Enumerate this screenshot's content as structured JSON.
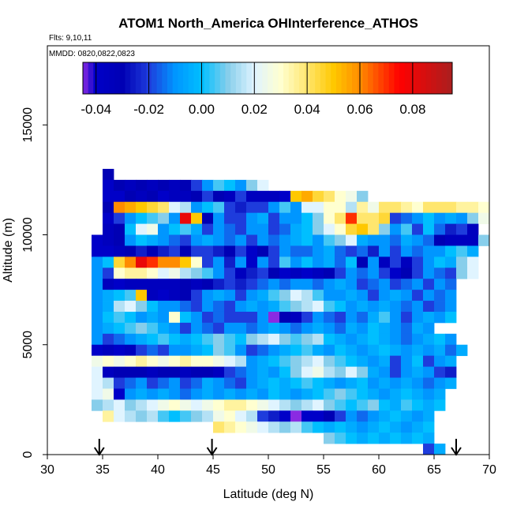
{
  "chart_data": {
    "type": "heatmap",
    "title": "ATOM1 North_America OHInterference_ATHOS",
    "flights_label": "Flts: 9,10,11",
    "dates_label": "MMDD: 0820,0822,0823",
    "xlabel": "Latitude (deg N)",
    "ylabel": "Altitude (m)",
    "xlim": [
      30,
      70
    ],
    "ylim": [
      0,
      18600
    ],
    "xticks": [
      "30",
      "35",
      "40",
      "45",
      "50",
      "55",
      "60",
      "65",
      "70"
    ],
    "xtick_values": [
      30,
      35,
      40,
      45,
      50,
      55,
      60,
      65,
      70
    ],
    "yticks": [
      "0",
      "5000",
      "10000",
      "15000"
    ],
    "ytick_values": [
      0,
      5000,
      10000,
      15000
    ],
    "colorbar": {
      "range": [
        -0.045,
        0.095
      ],
      "ticks": [
        "-0.04",
        "-0.02",
        "0.00",
        "0.02",
        "0.04",
        "0.06",
        "0.08"
      ],
      "tick_values": [
        -0.04,
        -0.02,
        0.0,
        0.02,
        0.04,
        0.06,
        0.08
      ],
      "stops": [
        [
          -0.045,
          "#8a2be2"
        ],
        [
          -0.04,
          "#0000c8"
        ],
        [
          -0.03,
          "#0000b4"
        ],
        [
          -0.02,
          "#1e3cdc"
        ],
        [
          -0.01,
          "#0096ff"
        ],
        [
          0.0,
          "#00bfff"
        ],
        [
          0.01,
          "#87ceeb"
        ],
        [
          0.02,
          "#e0f4ff"
        ],
        [
          0.03,
          "#ffffd0"
        ],
        [
          0.04,
          "#ffe66e"
        ],
        [
          0.05,
          "#ffc800"
        ],
        [
          0.06,
          "#ff8c00"
        ],
        [
          0.075,
          "#ff0000"
        ],
        [
          0.095,
          "#aa1e1e"
        ]
      ]
    },
    "arrows_latitude": [
      34.7,
      44.9,
      67.0
    ],
    "cell_width_deg": 1,
    "cell_height_m": 500,
    "rows": [
      {
        "alt": 12750,
        "lat0": 35,
        "values": [
          -0.03
        ]
      },
      {
        "alt": 12250,
        "lat0": 35,
        "values": [
          -0.04,
          -0.03,
          -0.035,
          -0.03,
          -0.035,
          -0.03,
          -0.035,
          -0.03,
          -0.02,
          -0.01,
          0.005,
          0.0,
          -0.01,
          0.01,
          0.02
        ]
      },
      {
        "alt": 11750,
        "lat0": 35,
        "values": [
          -0.04,
          -0.04,
          -0.03,
          -0.035,
          -0.03,
          -0.04,
          -0.035,
          -0.035,
          -0.03,
          -0.02,
          -0.03,
          -0.035,
          -0.02,
          -0.035,
          -0.035,
          -0.035,
          -0.04,
          0.05,
          0.055,
          0.045,
          0.04,
          0.03,
          0.025,
          0.01
        ]
      },
      {
        "alt": 11250,
        "lat0": 35,
        "values": [
          -0.03,
          0.06,
          0.055,
          0.05,
          0.045,
          0.04,
          0.02,
          0.015,
          -0.01,
          0.0,
          0.005,
          -0.02,
          -0.025,
          -0.02,
          -0.02,
          -0.01,
          0.005,
          -0.01,
          0.02,
          0.02,
          0.03,
          0.03,
          0.015,
          0.035,
          0.025,
          0.04,
          0.04,
          0.035,
          0.03,
          0.04,
          0.04,
          0.04,
          0.035,
          0.035,
          0.03
        ]
      },
      {
        "alt": 10750,
        "lat0": 35,
        "values": [
          -0.04,
          -0.02,
          -0.01,
          0.0,
          0.005,
          0.01,
          -0.01,
          0.08,
          0.05,
          -0.03,
          -0.01,
          -0.02,
          -0.02,
          -0.01,
          -0.005,
          -0.02,
          -0.01,
          -0.01,
          0.0,
          0.01,
          0.03,
          0.04,
          0.07,
          0.04,
          0.04,
          0.045,
          -0.02,
          -0.015,
          -0.01,
          0.0,
          -0.01,
          -0.005,
          -0.01,
          0.01,
          0.025
        ]
      },
      {
        "alt": 10250,
        "lat0": 35,
        "values": [
          -0.035,
          -0.03,
          0.0,
          0.02,
          0.025,
          -0.01,
          0.0,
          0.005,
          -0.005,
          -0.02,
          -0.01,
          -0.015,
          -0.02,
          -0.01,
          -0.01,
          -0.02,
          -0.015,
          -0.005,
          0.0,
          0.01,
          0.02,
          0.03,
          0.045,
          0.05,
          0.04,
          0.01,
          -0.01,
          0.005,
          -0.02,
          0.0,
          -0.015,
          -0.025,
          -0.02,
          -0.035
        ]
      },
      {
        "alt": 9750,
        "lat0": 34,
        "values": [
          -0.04,
          -0.035,
          -0.03,
          -0.01,
          0.0,
          -0.005,
          -0.01,
          -0.015,
          -0.02,
          -0.01,
          -0.005,
          -0.01,
          -0.015,
          -0.01,
          -0.02,
          -0.01,
          -0.015,
          -0.01,
          -0.005,
          0.0,
          -0.01,
          0.005,
          0.01,
          0.02,
          -0.005,
          -0.01,
          -0.01,
          -0.015,
          -0.005,
          -0.01,
          -0.015,
          -0.03,
          -0.035,
          -0.035,
          -0.035,
          0.01
        ]
      },
      {
        "alt": 9250,
        "lat0": 34,
        "values": [
          -0.04,
          -0.04,
          -0.035,
          -0.03,
          -0.025,
          -0.03,
          -0.025,
          -0.02,
          -0.03,
          -0.02,
          -0.02,
          -0.025,
          -0.03,
          -0.02,
          -0.04,
          -0.03,
          -0.02,
          -0.01,
          -0.015,
          -0.015,
          -0.01,
          -0.005,
          -0.015,
          -0.02,
          -0.015,
          -0.025,
          -0.01,
          -0.02,
          -0.01,
          -0.015,
          -0.01,
          -0.01,
          0.0,
          0.005,
          -0.005
        ]
      },
      {
        "alt": 8750,
        "lat0": 34,
        "values": [
          -0.01,
          0.0,
          0.045,
          0.06,
          0.08,
          0.07,
          0.06,
          0.06,
          0.05,
          0.03,
          -0.02,
          -0.01,
          -0.025,
          -0.01,
          -0.04,
          -0.01,
          -0.02,
          0.005,
          -0.01,
          0.0,
          -0.01,
          -0.005,
          -0.015,
          0.0,
          -0.03,
          -0.01,
          -0.035,
          -0.02,
          -0.035,
          -0.02,
          -0.01,
          0.0,
          -0.005,
          0.01,
          0.02
        ]
      },
      {
        "alt": 8250,
        "lat0": 34,
        "values": [
          -0.01,
          -0.02,
          0.03,
          0.035,
          0.035,
          0.03,
          0.02,
          0.025,
          0.015,
          0.01,
          0.005,
          -0.01,
          -0.02,
          -0.035,
          -0.025,
          -0.02,
          -0.03,
          -0.04,
          -0.035,
          -0.04,
          -0.035,
          -0.03,
          -0.02,
          -0.01,
          -0.015,
          -0.01,
          -0.02,
          -0.04,
          -0.03,
          -0.02,
          -0.01,
          -0.015,
          -0.02,
          0.01,
          0.02
        ]
      },
      {
        "alt": 7750,
        "lat0": 34,
        "values": [
          -0.01,
          -0.035,
          -0.04,
          -0.035,
          -0.035,
          -0.035,
          -0.035,
          -0.035,
          -0.03,
          -0.035,
          -0.03,
          -0.025,
          -0.02,
          -0.025,
          -0.02,
          -0.015,
          -0.01,
          -0.015,
          -0.01,
          -0.01,
          -0.015,
          -0.01,
          -0.005,
          -0.01,
          -0.02,
          -0.015,
          -0.01,
          -0.02,
          -0.015,
          -0.01,
          -0.02,
          -0.01,
          -0.015
        ]
      },
      {
        "alt": 7250,
        "lat0": 34,
        "values": [
          -0.01,
          -0.005,
          0.0,
          0.005,
          0.05,
          -0.035,
          -0.04,
          -0.035,
          -0.03,
          -0.02,
          -0.01,
          -0.005,
          -0.01,
          -0.02,
          -0.01,
          -0.005,
          0.005,
          0.01,
          0.02,
          0.015,
          0.005,
          -0.01,
          -0.01,
          -0.005,
          -0.01,
          -0.02,
          -0.01,
          -0.005,
          -0.01,
          -0.02,
          -0.01,
          -0.015,
          -0.01
        ]
      },
      {
        "alt": 6750,
        "lat0": 34,
        "values": [
          -0.01,
          -0.005,
          0.015,
          0.02,
          0.01,
          0.0,
          -0.01,
          -0.01,
          -0.015,
          -0.02,
          -0.01,
          -0.015,
          -0.02,
          -0.01,
          -0.005,
          -0.01,
          -0.005,
          0.005,
          0.01,
          0.015,
          0.02,
          0.005,
          0.0,
          -0.01,
          -0.005,
          -0.01,
          -0.005,
          -0.01,
          -0.015,
          -0.01,
          -0.02,
          -0.015,
          -0.01
        ]
      },
      {
        "alt": 6250,
        "lat0": 34,
        "values": [
          -0.01,
          0.0,
          0.005,
          0.0,
          -0.01,
          -0.005,
          -0.01,
          0.03,
          0.0,
          -0.01,
          -0.02,
          -0.015,
          -0.02,
          -0.02,
          -0.02,
          -0.01,
          -0.045,
          -0.03,
          -0.035,
          -0.02,
          -0.01,
          -0.015,
          -0.02,
          -0.01,
          -0.015,
          -0.005,
          0.005,
          -0.01,
          -0.02,
          -0.01,
          -0.005,
          -0.01,
          0.0
        ]
      },
      {
        "alt": 5750,
        "lat0": 34,
        "values": [
          -0.01,
          -0.005,
          0.0,
          0.005,
          0.01,
          0.005,
          -0.005,
          -0.01,
          -0.02,
          -0.01,
          -0.015,
          -0.02,
          -0.01,
          -0.01,
          -0.015,
          -0.01,
          -0.005,
          -0.01,
          -0.015,
          -0.01,
          -0.005,
          -0.01,
          -0.015,
          -0.005,
          -0.01,
          0.0,
          -0.005,
          -0.01,
          -0.015,
          -0.005,
          -0.01
        ]
      },
      {
        "alt": 5250,
        "lat0": 34,
        "values": [
          -0.01,
          -0.02,
          -0.015,
          -0.01,
          -0.005,
          0.0,
          0.005,
          0.0,
          -0.005,
          0.0,
          0.005,
          0.01,
          0.005,
          0.0,
          0.01,
          0.015,
          0.02,
          0.01,
          0.005,
          0.01,
          0.015,
          0.0,
          -0.005,
          -0.01,
          -0.005,
          0.0,
          -0.005,
          -0.01,
          -0.015,
          -0.01,
          -0.005,
          0.0,
          -0.01
        ]
      },
      {
        "alt": 4750,
        "lat0": 34,
        "values": [
          -0.04,
          -0.035,
          -0.04,
          -0.035,
          -0.02,
          -0.015,
          -0.02,
          -0.01,
          -0.01,
          -0.005,
          0.0,
          0.01,
          0.005,
          -0.01,
          -0.02,
          -0.015,
          -0.01,
          -0.005,
          0.0,
          0.005,
          -0.005,
          -0.01,
          0.0,
          -0.005,
          -0.01,
          -0.005,
          0.0,
          -0.005,
          -0.01,
          -0.005,
          -0.01,
          -0.005,
          -0.015,
          -0.005
        ]
      },
      {
        "alt": 4250,
        "lat0": 34,
        "values": [
          0.025,
          0.03,
          0.025,
          0.03,
          0.035,
          0.03,
          0.025,
          0.03,
          0.035,
          0.03,
          0.03,
          0.025,
          0.02,
          0.015,
          -0.01,
          -0.005,
          0.0,
          0.005,
          0.01,
          0.015,
          0.02,
          0.01,
          0.005,
          0.0,
          -0.005,
          -0.01,
          -0.005,
          -0.02,
          -0.01,
          0.0,
          -0.02,
          -0.01,
          -0.005
        ]
      },
      {
        "alt": 3750,
        "lat0": 34,
        "values": [
          0.02,
          -0.035,
          -0.03,
          -0.03,
          -0.03,
          -0.035,
          -0.03,
          -0.03,
          -0.035,
          -0.03,
          -0.03,
          -0.035,
          -0.02,
          -0.015,
          -0.01,
          -0.005,
          -0.01,
          0.0,
          0.01,
          0.02,
          0.025,
          0.015,
          0.01,
          0.02,
          0.01,
          -0.005,
          -0.01,
          -0.02,
          -0.01,
          -0.005,
          -0.01,
          -0.02,
          -0.025
        ]
      },
      {
        "alt": 3250,
        "lat0": 34,
        "values": [
          0.02,
          0.015,
          -0.02,
          -0.015,
          -0.01,
          -0.02,
          -0.015,
          -0.01,
          -0.02,
          -0.015,
          -0.005,
          -0.01,
          -0.015,
          -0.02,
          -0.01,
          -0.005,
          0.0,
          -0.005,
          0.0,
          0.005,
          0.0,
          -0.005,
          -0.01,
          -0.005,
          0.0,
          -0.01,
          -0.005,
          -0.01,
          -0.005,
          -0.01,
          -0.015,
          -0.01,
          -0.005
        ]
      },
      {
        "alt": 2750,
        "lat0": 34,
        "values": [
          0.02,
          0.025,
          -0.04,
          -0.01,
          -0.005,
          -0.01,
          -0.005,
          -0.01,
          -0.015,
          -0.01,
          -0.005,
          -0.01,
          -0.005,
          -0.01,
          -0.005,
          -0.01,
          0.0,
          -0.005,
          -0.01,
          -0.005,
          0.0,
          0.005,
          0.01,
          0.005,
          0.0,
          -0.005,
          -0.01,
          -0.005,
          0.0,
          -0.005,
          -0.01,
          -0.005
        ]
      },
      {
        "alt": 2250,
        "lat0": 34,
        "values": [
          0.01,
          0.015,
          0.02,
          0.01,
          0.015,
          0.02,
          0.025,
          0.03,
          0.025,
          0.02,
          0.025,
          0.03,
          0.035,
          0.035,
          0.03,
          0.025,
          0.02,
          0.015,
          0.01,
          0.015,
          0.02,
          0.01,
          0.005,
          0.0,
          0.005,
          0.01,
          0.0,
          -0.005,
          0.005,
          0.0,
          -0.005,
          0.0
        ]
      },
      {
        "alt": 1750,
        "lat0": 35,
        "values": [
          0.035,
          0.02,
          0.015,
          0.01,
          0.015,
          0.005,
          0.0,
          0.005,
          0.01,
          0.015,
          0.025,
          0.03,
          0.02,
          0.015,
          -0.02,
          -0.025,
          -0.04,
          -0.045,
          -0.04,
          -0.04,
          -0.03,
          -0.02,
          -0.01,
          -0.015,
          -0.01,
          -0.005,
          0.0,
          -0.005,
          -0.01,
          -0.005
        ]
      },
      {
        "alt": 1250,
        "lat0": 45,
        "values": [
          0.04,
          0.035,
          0.03,
          0.025,
          0.02,
          0.015,
          0.01,
          0.015,
          0.005,
          0.0,
          -0.005,
          0.0,
          -0.005,
          -0.01,
          -0.005,
          0.0,
          -0.005,
          -0.01,
          -0.005,
          0.0
        ]
      },
      {
        "alt": 750,
        "lat0": 55,
        "values": [
          0.01,
          0.005,
          0.0,
          -0.005,
          0.0,
          -0.005,
          0.0,
          -0.005,
          0.0,
          -0.005
        ]
      },
      {
        "alt": 250,
        "lat0": 64,
        "values": [
          -0.02,
          -0.005
        ]
      }
    ]
  }
}
